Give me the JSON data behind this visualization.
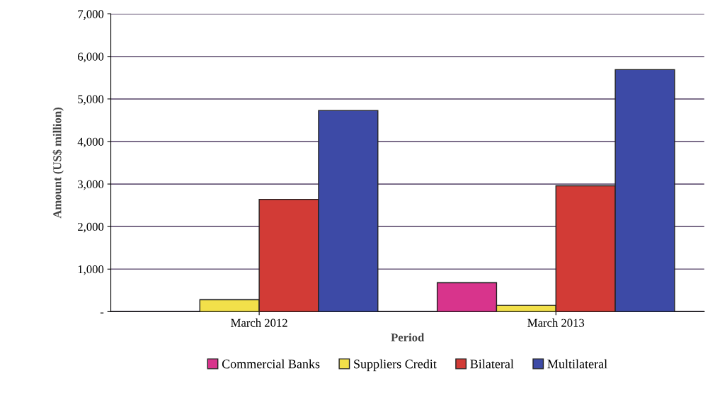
{
  "chart_data": {
    "type": "bar",
    "xlabel": "Period",
    "ylabel": "Amount (US$ million)",
    "categories": [
      "March 2012",
      "March 2013"
    ],
    "series": [
      {
        "name": "Commercial Banks",
        "color": "#d8348c",
        "values": [
          null,
          680
        ]
      },
      {
        "name": "Suppliers Credit",
        "color": "#f2e04a",
        "values": [
          280,
          150
        ]
      },
      {
        "name": "Bilateral",
        "color": "#d23b36",
        "values": [
          2640,
          2960
        ]
      },
      {
        "name": "Multilateral",
        "color": "#3d4aa6",
        "values": [
          4730,
          5690
        ]
      }
    ],
    "ylim": [
      0,
      7000
    ],
    "yticks": [
      {
        "value": 0,
        "label": "-"
      },
      {
        "value": 1000,
        "label": "1,000"
      },
      {
        "value": 2000,
        "label": "2,000"
      },
      {
        "value": 3000,
        "label": "3,000"
      },
      {
        "value": 4000,
        "label": "4,000"
      },
      {
        "value": 5000,
        "label": "5,000"
      },
      {
        "value": 6000,
        "label": "6,000"
      },
      {
        "value": 7000,
        "label": "7,000"
      }
    ],
    "grid": "y",
    "legend": "bottom"
  }
}
